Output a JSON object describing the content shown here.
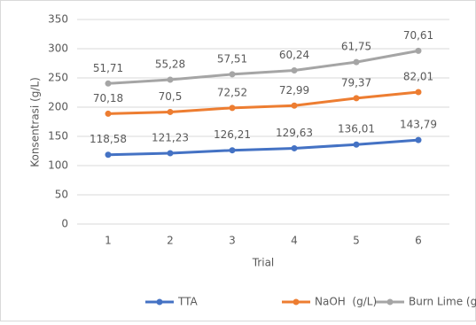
{
  "chart_data": {
    "type": "line",
    "stacked": true,
    "x_label": "Trial",
    "y_label": "Konsentrasi (g/L)",
    "categories": [
      "1",
      "2",
      "3",
      "4",
      "5",
      "6"
    ],
    "series": [
      {
        "name": "TTA",
        "color": "#4472c4",
        "values": [
          118.58,
          121.23,
          126.21,
          129.63,
          136.01,
          143.79
        ],
        "value_labels": [
          "118,58",
          "121,23",
          "126,21",
          "129,63",
          "136,01",
          "143,79"
        ]
      },
      {
        "name": "NaOH  (g/L)",
        "color": "#ed7d31",
        "values": [
          70.18,
          70.5,
          72.52,
          72.99,
          79.37,
          82.01
        ],
        "value_labels": [
          "70,18",
          "70,5",
          "72,52",
          "72,99",
          "79,37",
          "82,01"
        ]
      },
      {
        "name": "Burn Lime (g)",
        "color": "#a5a5a5",
        "values": [
          51.71,
          55.28,
          57.51,
          60.24,
          61.75,
          70.61
        ],
        "value_labels": [
          "51,71",
          "55,28",
          "57,51",
          "60,24",
          "61,75",
          "70,61"
        ]
      }
    ],
    "ylim": [
      0,
      350
    ],
    "yticks": [
      0,
      50,
      100,
      150,
      200,
      250,
      300,
      350
    ],
    "grid": true,
    "legend": "bottom"
  }
}
